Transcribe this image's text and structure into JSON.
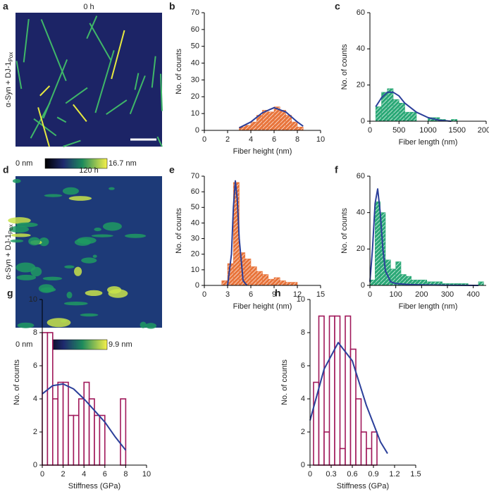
{
  "images": [
    {
      "panel": "a",
      "title": "0 h",
      "ylabel": "α-Syn + DJ-1",
      "ylabel_sub": "Pox",
      "colorbar_min": "0 nm",
      "colorbar_max": "16.7 nm"
    },
    {
      "panel": "d",
      "title": "120 h",
      "ylabel": "α-Syn + DJ-1",
      "ylabel_sub": "Pox",
      "colorbar_min": "0 nm",
      "colorbar_max": "9.9 nm"
    }
  ],
  "chart_data": [
    {
      "type": "histogram",
      "panel": "b",
      "xlabel": "Fiber height (nm)",
      "ylabel": "No. of counts",
      "color": "#e8743b",
      "hatch": true,
      "fit_color": "#2b3f9a",
      "bins": [
        3,
        3.5,
        4,
        4.5,
        5,
        5.5,
        6,
        6.5,
        7,
        7.5,
        8,
        8.5
      ],
      "values": [
        2,
        3,
        5,
        9,
        12,
        11,
        14,
        12,
        9,
        5,
        2
      ],
      "fit": {
        "x": [
          3,
          4,
          5,
          6,
          7,
          8,
          8.5
        ],
        "y": [
          1.5,
          5,
          10.5,
          13.5,
          11,
          5,
          2.5
        ]
      },
      "xlim": [
        0,
        10
      ],
      "xticks": [
        0,
        2,
        4,
        6,
        8,
        10
      ],
      "ylim": [
        0,
        70
      ],
      "yticks": [
        0,
        10,
        20,
        30,
        40,
        50,
        60,
        70
      ]
    },
    {
      "type": "histogram",
      "panel": "c",
      "xlabel": "Fiber length (nm)",
      "ylabel": "No. of counts",
      "color": "#2aa876",
      "hatch": true,
      "fit_color": "#2b3f9a",
      "bins": [
        100,
        200,
        300,
        400,
        500,
        600,
        700,
        800,
        900,
        1000,
        1100,
        1200,
        1300,
        1400,
        1500
      ],
      "values": [
        8,
        16,
        18,
        12,
        10,
        5,
        5,
        0,
        0,
        2,
        2,
        1,
        0,
        1
      ],
      "fit": {
        "x": [
          100,
          200,
          300,
          400,
          500,
          600,
          800,
          1000,
          1200,
          1400
        ],
        "y": [
          8,
          13,
          16,
          16,
          14,
          10,
          5,
          2,
          0.5,
          0
        ]
      },
      "xlim": [
        0,
        2000
      ],
      "xticks": [
        0,
        500,
        1000,
        1500,
        2000
      ],
      "ylim": [
        0,
        60
      ],
      "yticks": [
        0,
        20,
        40,
        60
      ]
    },
    {
      "type": "histogram",
      "panel": "e",
      "xlabel": "Fiber height (nm)",
      "ylabel": "No. of counts",
      "color": "#e8743b",
      "hatch": true,
      "fit_color": "#2b3f9a",
      "bins": [
        2.25,
        3,
        3.75,
        4.5,
        5.25,
        6,
        6.75,
        7.5,
        8.25,
        9,
        9.75,
        10.5,
        11.25,
        12
      ],
      "values": [
        3,
        14,
        66,
        21,
        17,
        12,
        9,
        7,
        4,
        5,
        3,
        2,
        2
      ],
      "fit": {
        "x": [
          3,
          3.5,
          3.75,
          4,
          4.25,
          4.5,
          5,
          5.5
        ],
        "y": [
          0,
          20,
          50,
          67,
          55,
          30,
          3,
          0
        ]
      },
      "xlim": [
        0,
        15
      ],
      "xticks": [
        0,
        3,
        6,
        9,
        12,
        15
      ],
      "ylim": [
        0,
        70
      ],
      "yticks": [
        0,
        10,
        20,
        30,
        40,
        50,
        60,
        70
      ]
    },
    {
      "type": "histogram",
      "panel": "f",
      "xlabel": "Fiber length (nm)",
      "ylabel": "No. of counts",
      "color": "#2aa876",
      "hatch": true,
      "fit_color": "#2b3f9a",
      "bins": [
        0,
        20,
        40,
        60,
        80,
        100,
        120,
        140,
        160,
        180,
        200,
        220,
        240,
        260,
        280,
        300,
        320,
        340,
        360,
        380,
        400,
        420,
        440
      ],
      "values": [
        3,
        46,
        40,
        14,
        9,
        13,
        6,
        5,
        3,
        3,
        3,
        2,
        2,
        2,
        1,
        1,
        1,
        1,
        1,
        0,
        0,
        2
      ],
      "fit": {
        "x": [
          0,
          10,
          20,
          30,
          40,
          50,
          60,
          80,
          100,
          150,
          200,
          300,
          420
        ],
        "y": [
          2,
          20,
          45,
          53,
          40,
          20,
          8,
          2,
          1,
          0.5,
          0.3,
          0.1,
          0
        ]
      },
      "xlim": [
        0,
        450
      ],
      "xticks": [
        0,
        100,
        200,
        300,
        400
      ],
      "ylim": [
        0,
        60
      ],
      "yticks": [
        0,
        20,
        40,
        60
      ]
    },
    {
      "type": "histogram",
      "panel": "g",
      "xlabel": "Stiffness (GPa)",
      "ylabel": "No. of counts",
      "color": "#a0185a",
      "hatch": false,
      "fit_color": "#2b3f9a",
      "bins": [
        0,
        0.5,
        1,
        1.5,
        2,
        2.5,
        3,
        3.5,
        4,
        4.5,
        5,
        5.5,
        6,
        6.5,
        7,
        7.5,
        8
      ],
      "values": [
        8,
        8,
        4,
        5,
        5,
        3,
        3,
        4,
        5,
        4,
        3,
        3,
        0,
        0,
        0,
        4
      ],
      "fit": {
        "x": [
          0,
          1,
          2,
          3,
          4,
          5,
          6,
          7,
          8
        ],
        "y": [
          4.3,
          4.8,
          4.9,
          4.6,
          4,
          3.3,
          2.6,
          1.7,
          0.9
        ]
      },
      "xlim": [
        0,
        10
      ],
      "xticks": [
        0,
        2,
        4,
        6,
        8,
        10
      ],
      "ylim": [
        0,
        10
      ],
      "yticks": [
        0,
        2,
        4,
        6,
        8,
        10
      ]
    },
    {
      "type": "histogram",
      "panel": "h",
      "xlabel": "Stiffness (GPa)",
      "ylabel": "No. of counts",
      "color": "#a0185a",
      "hatch": false,
      "fit_color": "#2b3f9a",
      "bins": [
        0.05,
        0.125,
        0.2,
        0.275,
        0.35,
        0.425,
        0.5,
        0.575,
        0.65,
        0.725,
        0.8,
        0.875,
        0.95
      ],
      "values": [
        5,
        9,
        2,
        9,
        9,
        1,
        9,
        7,
        4,
        2,
        1,
        2
      ],
      "fit": {
        "x": [
          0,
          0.2,
          0.4,
          0.6,
          0.8,
          1,
          1.1
        ],
        "y": [
          2.7,
          5.8,
          7.4,
          6.3,
          3.6,
          1.4,
          0.7
        ]
      },
      "xlim": [
        0,
        1.5
      ],
      "xticks": [
        0,
        0.3,
        0.6,
        0.9,
        1.2,
        1.5
      ],
      "ylim": [
        0,
        10
      ],
      "yticks": [
        0,
        2,
        4,
        6,
        8,
        10
      ]
    }
  ]
}
